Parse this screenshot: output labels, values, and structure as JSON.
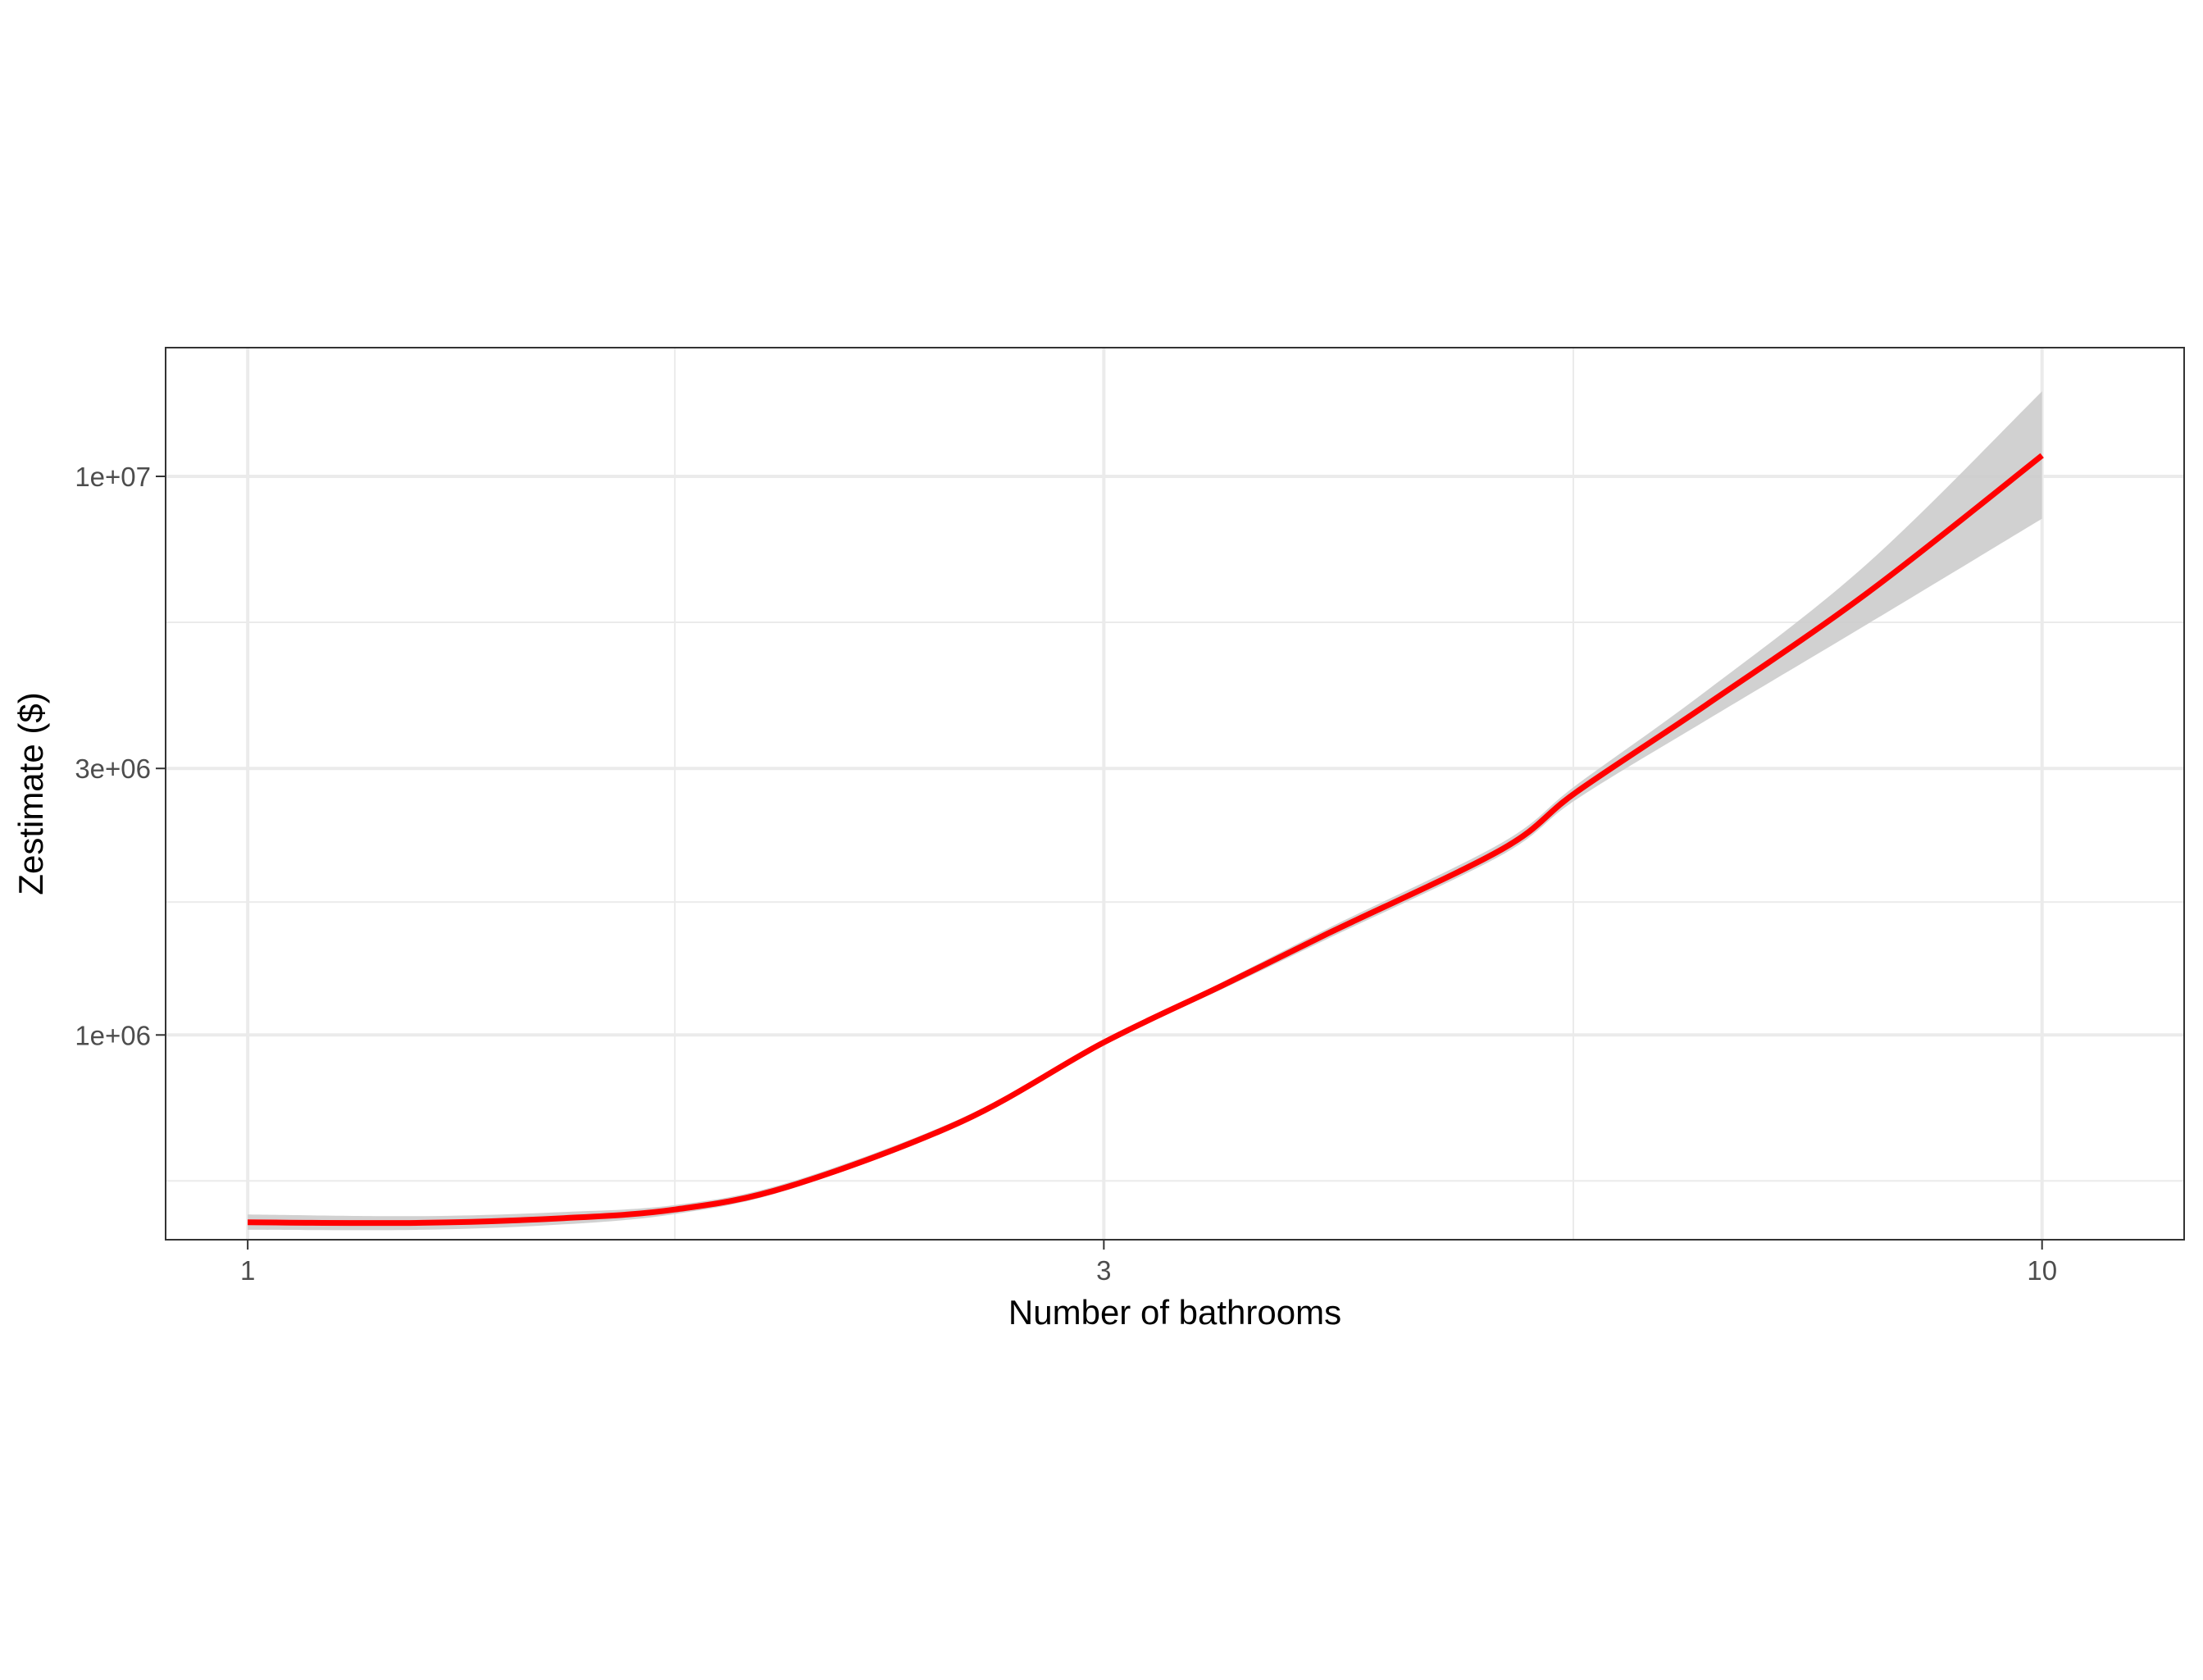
{
  "chart_data": {
    "type": "line",
    "title": "",
    "xlabel": "Number of bathrooms",
    "ylabel": "Zestimate ($)",
    "x_scale": "log",
    "y_scale": "log",
    "xlim": [
      0.9,
      12.0
    ],
    "ylim": [
      430000,
      17000000
    ],
    "x_ticks": [
      1,
      3,
      10
    ],
    "x_tick_labels": [
      "1",
      "3",
      "10"
    ],
    "x_minor_gridlines": [
      1.73,
      5.48
    ],
    "y_ticks": [
      1000000,
      3000000,
      10000000
    ],
    "y_tick_labels": [
      "1e+06",
      "3e+06",
      "1e+07"
    ],
    "y_minor_gridlines": [
      548000,
      1730000,
      5480000
    ],
    "grid": true,
    "legend": "none",
    "colors": {
      "line": "#ff0000",
      "confidence_band": "#cccccc",
      "panel_border": "#333333",
      "grid": "#ebebeb"
    },
    "series": [
      {
        "x": [
          1.0,
          1.25,
          1.5,
          1.73,
          2.0,
          2.5,
          3.0,
          3.5,
          4.0,
          5.0,
          5.5,
          6.5,
          8.0,
          10.0
        ],
        "y": [
          462000,
          461000,
          470000,
          487000,
          535000,
          700000,
          970000,
          1230000,
          1520000,
          2150000,
          2720000,
          3900000,
          6200000,
          10900000
        ],
        "ci_lower": [
          448000,
          448000,
          458000,
          478000,
          528000,
          692000,
          962000,
          1212000,
          1488000,
          2100000,
          2640000,
          3660000,
          5450000,
          8400000
        ],
        "ci_upper": [
          477000,
          474000,
          482000,
          496000,
          544000,
          710000,
          978000,
          1248000,
          1552000,
          2210000,
          2800000,
          4130000,
          7000000,
          14200000
        ]
      }
    ]
  }
}
